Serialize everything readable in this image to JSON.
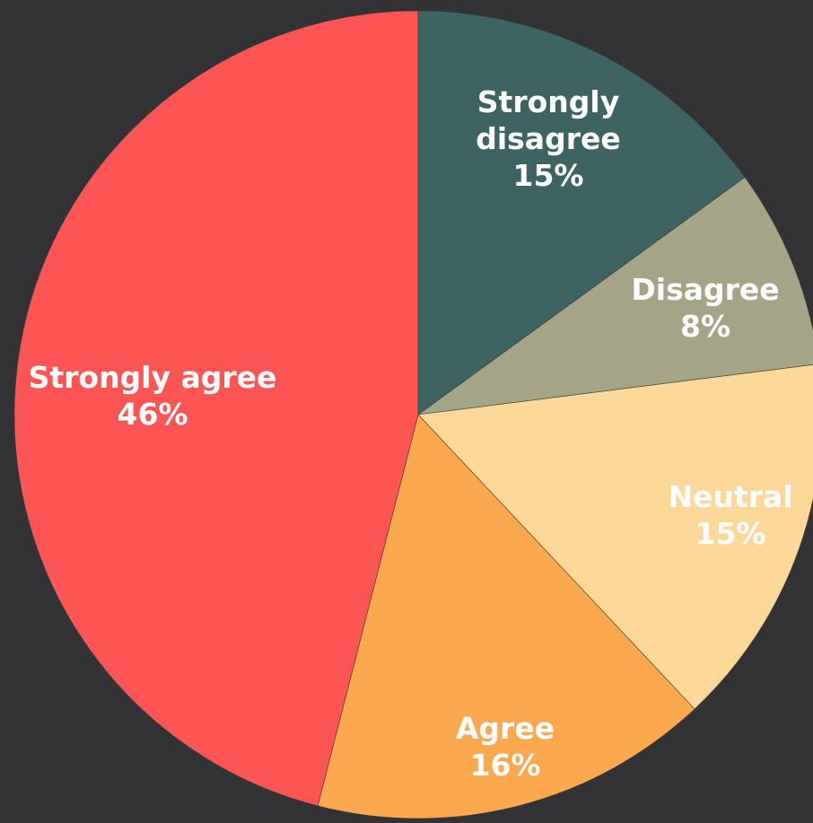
{
  "chart_data": {
    "type": "pie",
    "title": "",
    "start_angle_deg": 0,
    "direction": "clockwise",
    "label_color": "#ffffff",
    "background": "#333335",
    "slices": [
      {
        "label": "Strongly disagree",
        "value": 15,
        "value_text": "15%",
        "color": "#3d6462",
        "label_lines": [
          "Strongly",
          "disagree",
          "15%"
        ]
      },
      {
        "label": "Disagree",
        "value": 8,
        "value_text": "8%",
        "color": "#a6a486",
        "label_lines": [
          "Disagree",
          "8%"
        ]
      },
      {
        "label": "Neutral",
        "value": 15,
        "value_text": "15%",
        "color": "#fdd899",
        "label_lines": [
          "Neutral",
          "15%"
        ]
      },
      {
        "label": "Agree",
        "value": 16,
        "value_text": "16%",
        "color": "#fca84e",
        "label_lines": [
          "Agree",
          "16%"
        ]
      },
      {
        "label": "Strongly agree",
        "value": 46,
        "value_text": "46%",
        "color": "#fd5454",
        "label_lines": [
          "Strongly agree",
          "46%"
        ]
      }
    ]
  }
}
